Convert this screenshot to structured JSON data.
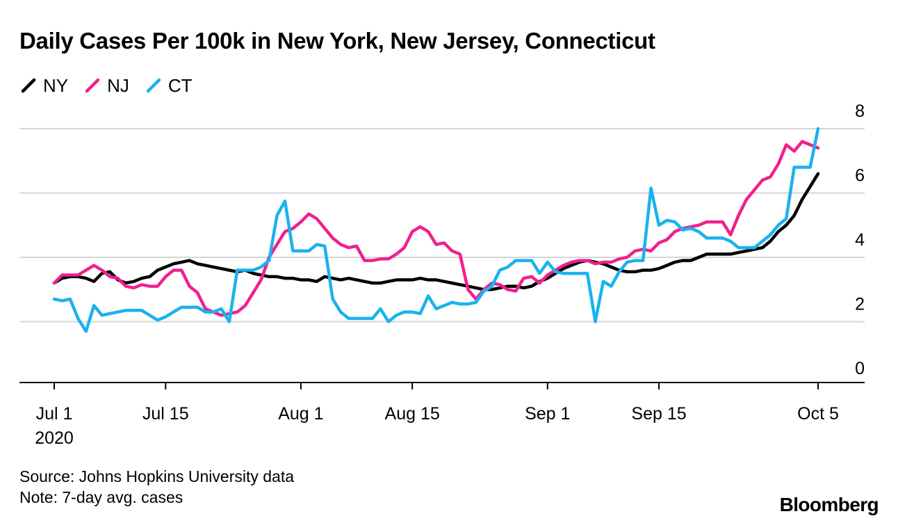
{
  "chart_data": {
    "type": "line",
    "title": "Daily Cases Per 100k in New York, New Jersey, Connecticut",
    "xlabel": "",
    "ylabel": "",
    "ylim": [
      0,
      8
    ],
    "yticks": [
      "0",
      "2",
      "4",
      "6",
      "8"
    ],
    "xticks": [
      {
        "day": 0,
        "label": "Jul 1",
        "sublabel": "2020"
      },
      {
        "day": 14,
        "label": "Jul 15"
      },
      {
        "day": 31,
        "label": "Aug 1"
      },
      {
        "day": 45,
        "label": "Aug 15"
      },
      {
        "day": 62,
        "label": "Sep 1"
      },
      {
        "day": 76,
        "label": "Sep 15"
      },
      {
        "day": 96,
        "label": "Oct 5"
      }
    ],
    "x_range": [
      0,
      96
    ],
    "x_unit": "days since Jul 1, 2020",
    "grid": true,
    "legend_position": "top-left",
    "series": [
      {
        "name": "NY",
        "color": "#000000",
        "points": [
          [
            0,
            3.2
          ],
          [
            1,
            3.35
          ],
          [
            2,
            3.4
          ],
          [
            3,
            3.4
          ],
          [
            4,
            3.35
          ],
          [
            5,
            3.25
          ],
          [
            6,
            3.5
          ],
          [
            7,
            3.55
          ],
          [
            8,
            3.3
          ],
          [
            9,
            3.2
          ],
          [
            10,
            3.25
          ],
          [
            11,
            3.35
          ],
          [
            12,
            3.4
          ],
          [
            13,
            3.6
          ],
          [
            14,
            3.7
          ],
          [
            15,
            3.8
          ],
          [
            16,
            3.85
          ],
          [
            17,
            3.9
          ],
          [
            18,
            3.8
          ],
          [
            19,
            3.75
          ],
          [
            20,
            3.7
          ],
          [
            21,
            3.65
          ],
          [
            22,
            3.6
          ],
          [
            23,
            3.55
          ],
          [
            24,
            3.6
          ],
          [
            25,
            3.5
          ],
          [
            26,
            3.45
          ],
          [
            27,
            3.4
          ],
          [
            28,
            3.4
          ],
          [
            29,
            3.35
          ],
          [
            30,
            3.35
          ],
          [
            31,
            3.3
          ],
          [
            32,
            3.3
          ],
          [
            33,
            3.25
          ],
          [
            34,
            3.4
          ],
          [
            35,
            3.35
          ],
          [
            36,
            3.3
          ],
          [
            37,
            3.35
          ],
          [
            38,
            3.3
          ],
          [
            39,
            3.25
          ],
          [
            40,
            3.2
          ],
          [
            41,
            3.2
          ],
          [
            42,
            3.25
          ],
          [
            43,
            3.3
          ],
          [
            44,
            3.3
          ],
          [
            45,
            3.3
          ],
          [
            46,
            3.35
          ],
          [
            47,
            3.3
          ],
          [
            48,
            3.3
          ],
          [
            49,
            3.25
          ],
          [
            50,
            3.2
          ],
          [
            51,
            3.15
          ],
          [
            52,
            3.1
          ],
          [
            53,
            3.05
          ],
          [
            54,
            3.0
          ],
          [
            55,
            3.0
          ],
          [
            56,
            3.05
          ],
          [
            57,
            3.1
          ],
          [
            58,
            3.1
          ],
          [
            59,
            3.05
          ],
          [
            60,
            3.1
          ],
          [
            61,
            3.25
          ],
          [
            62,
            3.35
          ],
          [
            63,
            3.5
          ],
          [
            64,
            3.65
          ],
          [
            65,
            3.75
          ],
          [
            66,
            3.85
          ],
          [
            67,
            3.9
          ],
          [
            68,
            3.85
          ],
          [
            69,
            3.8
          ],
          [
            70,
            3.7
          ],
          [
            71,
            3.6
          ],
          [
            72,
            3.55
          ],
          [
            73,
            3.55
          ],
          [
            74,
            3.6
          ],
          [
            75,
            3.6
          ],
          [
            76,
            3.65
          ],
          [
            77,
            3.75
          ],
          [
            78,
            3.85
          ],
          [
            79,
            3.9
          ],
          [
            80,
            3.9
          ],
          [
            81,
            4.0
          ],
          [
            82,
            4.1
          ],
          [
            83,
            4.1
          ],
          [
            84,
            4.1
          ],
          [
            85,
            4.1
          ],
          [
            86,
            4.15
          ],
          [
            87,
            4.2
          ],
          [
            88,
            4.25
          ],
          [
            89,
            4.3
          ],
          [
            90,
            4.5
          ],
          [
            91,
            4.8
          ],
          [
            92,
            5.0
          ],
          [
            93,
            5.3
          ],
          [
            94,
            5.8
          ],
          [
            95,
            6.2
          ],
          [
            96,
            6.6
          ]
        ]
      },
      {
        "name": "NJ",
        "color": "#f0208c",
        "points": [
          [
            0,
            3.2
          ],
          [
            1,
            3.45
          ],
          [
            2,
            3.45
          ],
          [
            3,
            3.45
          ],
          [
            4,
            3.6
          ],
          [
            5,
            3.75
          ],
          [
            6,
            3.6
          ],
          [
            7,
            3.4
          ],
          [
            8,
            3.35
          ],
          [
            9,
            3.1
          ],
          [
            10,
            3.05
          ],
          [
            11,
            3.15
          ],
          [
            12,
            3.1
          ],
          [
            13,
            3.1
          ],
          [
            14,
            3.4
          ],
          [
            15,
            3.6
          ],
          [
            16,
            3.6
          ],
          [
            17,
            3.1
          ],
          [
            18,
            2.9
          ],
          [
            19,
            2.4
          ],
          [
            20,
            2.3
          ],
          [
            21,
            2.2
          ],
          [
            22,
            2.25
          ],
          [
            23,
            2.3
          ],
          [
            24,
            2.5
          ],
          [
            25,
            2.9
          ],
          [
            26,
            3.3
          ],
          [
            27,
            4.0
          ],
          [
            28,
            4.4
          ],
          [
            29,
            4.8
          ],
          [
            30,
            4.9
          ],
          [
            31,
            5.1
          ],
          [
            32,
            5.35
          ],
          [
            33,
            5.2
          ],
          [
            34,
            4.9
          ],
          [
            35,
            4.6
          ],
          [
            36,
            4.4
          ],
          [
            37,
            4.3
          ],
          [
            38,
            4.35
          ],
          [
            39,
            3.9
          ],
          [
            40,
            3.9
          ],
          [
            41,
            3.95
          ],
          [
            42,
            3.95
          ],
          [
            43,
            4.1
          ],
          [
            44,
            4.3
          ],
          [
            45,
            4.8
          ],
          [
            46,
            4.95
          ],
          [
            47,
            4.8
          ],
          [
            48,
            4.4
          ],
          [
            49,
            4.45
          ],
          [
            50,
            4.2
          ],
          [
            51,
            4.1
          ],
          [
            52,
            3.0
          ],
          [
            53,
            2.7
          ],
          [
            54,
            3.0
          ],
          [
            55,
            3.2
          ],
          [
            56,
            3.15
          ],
          [
            57,
            3.0
          ],
          [
            58,
            2.95
          ],
          [
            59,
            3.35
          ],
          [
            60,
            3.4
          ],
          [
            61,
            3.2
          ],
          [
            62,
            3.45
          ],
          [
            63,
            3.6
          ],
          [
            64,
            3.75
          ],
          [
            65,
            3.85
          ],
          [
            66,
            3.9
          ],
          [
            67,
            3.9
          ],
          [
            68,
            3.8
          ],
          [
            69,
            3.85
          ],
          [
            70,
            3.85
          ],
          [
            71,
            3.95
          ],
          [
            72,
            4.0
          ],
          [
            73,
            4.2
          ],
          [
            74,
            4.25
          ],
          [
            75,
            4.2
          ],
          [
            76,
            4.45
          ],
          [
            77,
            4.55
          ],
          [
            78,
            4.8
          ],
          [
            79,
            4.9
          ],
          [
            80,
            4.95
          ],
          [
            81,
            5.0
          ],
          [
            82,
            5.1
          ],
          [
            83,
            5.1
          ],
          [
            84,
            5.1
          ],
          [
            85,
            4.7
          ],
          [
            86,
            5.3
          ],
          [
            87,
            5.8
          ],
          [
            88,
            6.1
          ],
          [
            89,
            6.4
          ],
          [
            90,
            6.5
          ],
          [
            91,
            6.9
          ],
          [
            92,
            7.5
          ],
          [
            93,
            7.3
          ],
          [
            94,
            7.6
          ],
          [
            95,
            7.5
          ],
          [
            96,
            7.4
          ]
        ]
      },
      {
        "name": "CT",
        "color": "#1ab2ef",
        "points": [
          [
            0,
            2.7
          ],
          [
            1,
            2.65
          ],
          [
            2,
            2.7
          ],
          [
            3,
            2.1
          ],
          [
            4,
            1.7
          ],
          [
            5,
            2.5
          ],
          [
            6,
            2.2
          ],
          [
            7,
            2.25
          ],
          [
            8,
            2.3
          ],
          [
            9,
            2.35
          ],
          [
            10,
            2.35
          ],
          [
            11,
            2.35
          ],
          [
            12,
            2.2
          ],
          [
            13,
            2.05
          ],
          [
            14,
            2.15
          ],
          [
            15,
            2.3
          ],
          [
            16,
            2.45
          ],
          [
            17,
            2.45
          ],
          [
            18,
            2.45
          ],
          [
            19,
            2.3
          ],
          [
            20,
            2.3
          ],
          [
            21,
            2.4
          ],
          [
            22,
            2.0
          ],
          [
            23,
            3.6
          ],
          [
            24,
            3.6
          ],
          [
            25,
            3.6
          ],
          [
            26,
            3.7
          ],
          [
            27,
            3.9
          ],
          [
            28,
            5.3
          ],
          [
            29,
            5.75
          ],
          [
            30,
            4.2
          ],
          [
            31,
            4.2
          ],
          [
            32,
            4.2
          ],
          [
            33,
            4.4
          ],
          [
            34,
            4.35
          ],
          [
            35,
            2.7
          ],
          [
            36,
            2.3
          ],
          [
            37,
            2.1
          ],
          [
            38,
            2.1
          ],
          [
            39,
            2.1
          ],
          [
            40,
            2.1
          ],
          [
            41,
            2.4
          ],
          [
            42,
            2.0
          ],
          [
            43,
            2.2
          ],
          [
            44,
            2.3
          ],
          [
            45,
            2.3
          ],
          [
            46,
            2.25
          ],
          [
            47,
            2.8
          ],
          [
            48,
            2.4
          ],
          [
            49,
            2.5
          ],
          [
            50,
            2.6
          ],
          [
            51,
            2.55
          ],
          [
            52,
            2.55
          ],
          [
            53,
            2.6
          ],
          [
            54,
            2.95
          ],
          [
            55,
            3.1
          ],
          [
            56,
            3.6
          ],
          [
            57,
            3.7
          ],
          [
            58,
            3.9
          ],
          [
            59,
            3.9
          ],
          [
            60,
            3.9
          ],
          [
            61,
            3.5
          ],
          [
            62,
            3.85
          ],
          [
            63,
            3.55
          ],
          [
            64,
            3.5
          ],
          [
            65,
            3.5
          ],
          [
            66,
            3.5
          ],
          [
            67,
            3.5
          ],
          [
            68,
            2.0
          ],
          [
            69,
            3.25
          ],
          [
            70,
            3.1
          ],
          [
            71,
            3.55
          ],
          [
            72,
            3.85
          ],
          [
            73,
            3.9
          ],
          [
            74,
            3.9
          ],
          [
            75,
            6.15
          ],
          [
            76,
            5.0
          ],
          [
            77,
            5.15
          ],
          [
            78,
            5.1
          ],
          [
            79,
            4.85
          ],
          [
            80,
            4.9
          ],
          [
            81,
            4.8
          ],
          [
            82,
            4.6
          ],
          [
            83,
            4.6
          ],
          [
            84,
            4.6
          ],
          [
            85,
            4.5
          ],
          [
            86,
            4.3
          ],
          [
            87,
            4.3
          ],
          [
            88,
            4.3
          ],
          [
            89,
            4.5
          ],
          [
            90,
            4.7
          ],
          [
            91,
            5.0
          ],
          [
            92,
            5.2
          ],
          [
            93,
            6.8
          ],
          [
            94,
            6.8
          ],
          [
            95,
            6.8
          ],
          [
            96,
            8.0
          ]
        ]
      }
    ]
  },
  "footer": {
    "source": "Source: Johns Hopkins University data",
    "note": "Note: 7-day avg. cases"
  },
  "brand": "Bloomberg"
}
